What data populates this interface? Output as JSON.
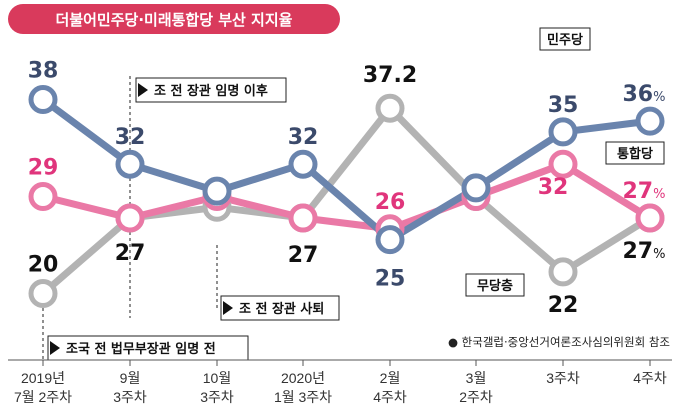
{
  "chart_data": {
    "type": "line",
    "title": "더불어민주당·미래통합당 부산 지지율",
    "categories": [
      [
        "2019년",
        "7월 2주차"
      ],
      [
        "9월",
        "3주차"
      ],
      [
        "10월",
        "3주차"
      ],
      [
        "2020년",
        "1월 3주차"
      ],
      [
        "2월",
        "4주차"
      ],
      [
        "3월",
        "2주차"
      ],
      [
        "3주차",
        ""
      ],
      [
        "4주차",
        ""
      ]
    ],
    "series": [
      {
        "name": "민주당",
        "color": "#6a84ad",
        "label_color": "#3b4a6b",
        "values": [
          38,
          32,
          29.5,
          32,
          25,
          29.8,
          35,
          36
        ]
      },
      {
        "name": "통합당",
        "color": "#ea79a6",
        "label_color": "#e0357c",
        "values": [
          29,
          27,
          29,
          27,
          26,
          29,
          32,
          27
        ]
      },
      {
        "name": "무당층",
        "color": "#b3b3b3",
        "label_color": "#111111",
        "values": [
          20,
          27,
          28,
          27,
          37.2,
          29,
          22,
          27
        ]
      }
    ],
    "data_labels": [
      {
        "series": 0,
        "index": 0,
        "text": "38"
      },
      {
        "series": 0,
        "index": 1,
        "text": "32"
      },
      {
        "series": 0,
        "index": 3,
        "text": "32"
      },
      {
        "series": 0,
        "index": 4,
        "text": "25"
      },
      {
        "series": 0,
        "index": 6,
        "text": "35"
      },
      {
        "series": 0,
        "index": 7,
        "text": "36",
        "unit": "%"
      },
      {
        "series": 1,
        "index": 0,
        "text": "29"
      },
      {
        "series": 1,
        "index": 4,
        "text": "26"
      },
      {
        "series": 1,
        "index": 6,
        "text": "32"
      },
      {
        "series": 1,
        "index": 7,
        "text": "27",
        "unit": "%"
      },
      {
        "series": 2,
        "index": 0,
        "text": "20"
      },
      {
        "series": 2,
        "index": 1,
        "text": "27"
      },
      {
        "series": 2,
        "index": 3,
        "text": "27"
      },
      {
        "series": 2,
        "index": 4,
        "text": "37.2"
      },
      {
        "series": 2,
        "index": 6,
        "text": "22"
      },
      {
        "series": 2,
        "index": 7,
        "text": "27",
        "unit": "%"
      }
    ],
    "annotations": [
      {
        "text": "조 전 장관 임명 이후",
        "at_index": 1
      },
      {
        "text": "조 전 장관 사퇴",
        "at_index": 2
      },
      {
        "text": "조국 전 법무부장관 임명 전",
        "at_index": 0
      }
    ],
    "source_note": "● 한국갤럽·중앙선거여론조사심의위원회 참조",
    "ylim": [
      18,
      40
    ],
    "grid": false,
    "legend": "inline labels"
  }
}
